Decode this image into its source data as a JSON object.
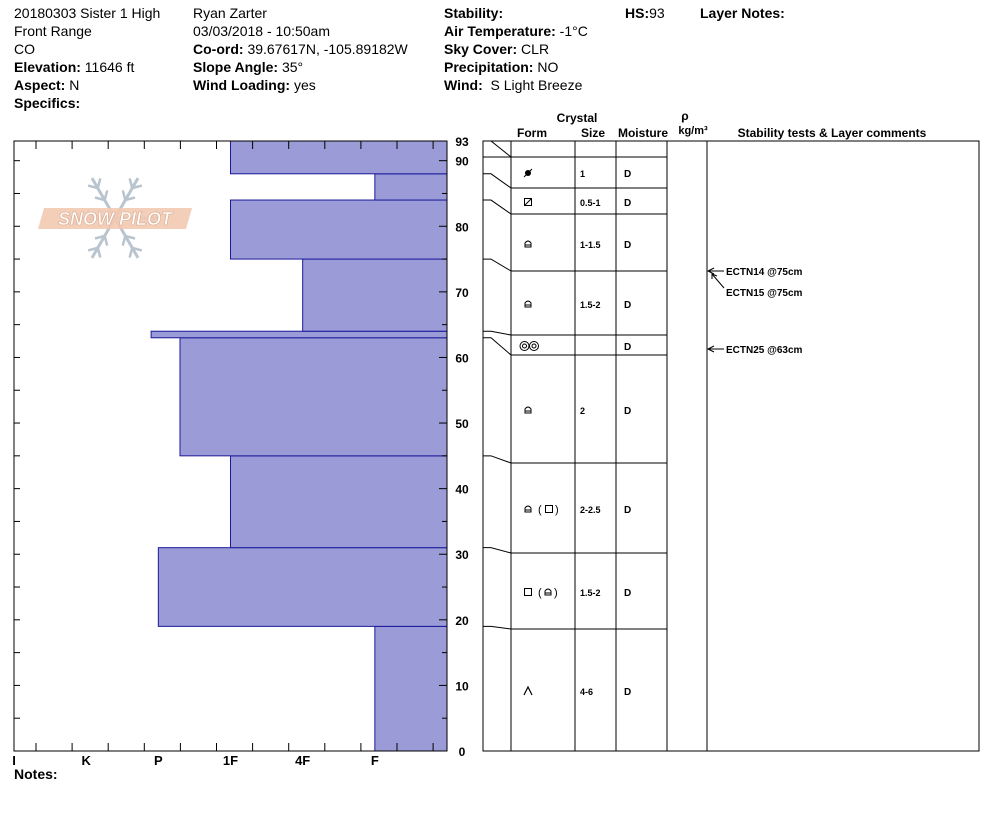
{
  "header": {
    "col1": {
      "pit_name": "20180303 Sister 1 High",
      "range": "Front Range",
      "state": "CO",
      "elevation_label": "Elevation:",
      "elevation_value": "11646 ft",
      "aspect_label": "Aspect:",
      "aspect_value": "N",
      "specifics_label": "Specifics:"
    },
    "col2": {
      "observer": "Ryan Zarter",
      "datetime": "03/03/2018 - 10:50am",
      "coord_label": "Co-ord:",
      "coord_value": "39.67617N, -105.89182W",
      "slope_label": "Slope Angle:",
      "slope_value": "35°",
      "wind_loading_label": "Wind Loading:",
      "wind_loading_value": "yes"
    },
    "col3": {
      "stability_label": "Stability:",
      "air_temp_label": "Air Temperature:",
      "air_temp_value": "-1°C",
      "sky_label": "Sky Cover:",
      "sky_value": "CLR",
      "precip_label": "Precipitation:",
      "precip_value": "NO",
      "wind_label": "Wind:",
      "wind_value": "S Light Breeze"
    },
    "hs_label": "HS:",
    "hs_value": "93",
    "layer_notes_label": "Layer Notes:"
  },
  "notes_label": "Notes:",
  "logo_text": "SNOW PILOT",
  "table_headers": {
    "crystal": "Crystal",
    "form": "Form",
    "size": "Size",
    "moisture": "Moisture",
    "rho": "ρ",
    "density_unit": "kg/m³",
    "stability": "Stability tests & Layer comments"
  },
  "colors": {
    "bar_fill": "#9b9bd8",
    "bar_stroke": "#1a1a9a",
    "axis": "#000000"
  },
  "chart_data": {
    "type": "bar",
    "orientation": "horizontal",
    "y_unit": "cm",
    "ylim": [
      0,
      93
    ],
    "y_ticks": [
      0,
      10,
      20,
      30,
      40,
      50,
      60,
      70,
      80,
      90,
      93
    ],
    "x_categories": [
      "I",
      "K",
      "P",
      "1F",
      "4F",
      "F"
    ],
    "layers": [
      {
        "bottom": 0,
        "top": 19,
        "hardness": "F",
        "form": "DH",
        "size": "4-6",
        "moisture": "D"
      },
      {
        "bottom": 19,
        "top": 31,
        "hardness": "P",
        "form": "FC(RG)",
        "size": "1.5-2",
        "moisture": "D"
      },
      {
        "bottom": 31,
        "top": 45,
        "hardness": "1F",
        "form": "RG(FC)",
        "size": "2-2.5",
        "moisture": "D"
      },
      {
        "bottom": 45,
        "top": 63,
        "hardness": "1F-P",
        "form": "RG",
        "size": "2",
        "moisture": "D"
      },
      {
        "bottom": 63,
        "top": 64,
        "hardness": "P+",
        "form": "SH",
        "size": "",
        "moisture": "D"
      },
      {
        "bottom": 64,
        "top": 75,
        "hardness": "4F",
        "form": "RG",
        "size": "1.5-2",
        "moisture": "D"
      },
      {
        "bottom": 75,
        "top": 84,
        "hardness": "1F",
        "form": "RG",
        "size": "1-1.5",
        "moisture": "D"
      },
      {
        "bottom": 84,
        "top": 88,
        "hardness": "F",
        "form": "FC",
        "size": "0.5-1",
        "moisture": "D"
      },
      {
        "bottom": 88,
        "top": 93,
        "hardness": "1F",
        "form": "MF",
        "size": "1",
        "moisture": "D"
      }
    ],
    "hardness_scale": {
      "I": 6,
      "K": 5,
      "P": 4,
      "P+": 4.1,
      "1F-P": 3.7,
      "1F": 3,
      "4F": 2,
      "F": 1
    },
    "stability_tests": [
      {
        "label": "ECTN14 @75cm",
        "depth": 75
      },
      {
        "label": "ECTN15 @75cm",
        "depth": 75
      },
      {
        "label": "ECTN25 @63cm",
        "depth": 63
      }
    ]
  }
}
